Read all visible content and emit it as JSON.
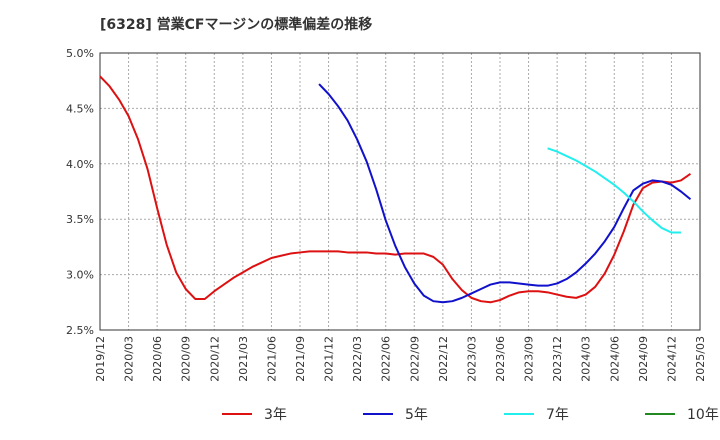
{
  "chart_data": {
    "type": "line",
    "title": "[6328]  営業CFマージンの標準偏差の推移",
    "xlabel": "",
    "ylabel": "",
    "x_ticks": [
      "2019/12",
      "2020/03",
      "2020/06",
      "2020/09",
      "2020/12",
      "2021/03",
      "2021/06",
      "2021/09",
      "2021/12",
      "2022/03",
      "2022/06",
      "2022/09",
      "2022/12",
      "2023/03",
      "2023/06",
      "2023/09",
      "2023/12",
      "2024/03",
      "2024/06",
      "2024/09",
      "2024/12",
      "2025/03"
    ],
    "y_ticks": [
      "2.5%",
      "3.0%",
      "3.5%",
      "4.0%",
      "4.5%",
      "5.0%"
    ],
    "ylim": [
      2.5,
      5.0
    ],
    "grid": true,
    "legend_position": "bottom",
    "series": [
      {
        "name": "3年",
        "color": "#dd1111",
        "start": "2019/12",
        "values": [
          4.79,
          4.7,
          4.58,
          4.43,
          4.22,
          3.95,
          3.6,
          3.27,
          3.02,
          2.87,
          2.78,
          2.78,
          2.85,
          2.91,
          2.97,
          3.02,
          3.07,
          3.11,
          3.15,
          3.17,
          3.19,
          3.2,
          3.21,
          3.21,
          3.21,
          3.21,
          3.2,
          3.2,
          3.2,
          3.19,
          3.19,
          3.18,
          3.19,
          3.19,
          3.19,
          3.16,
          3.09,
          2.96,
          2.86,
          2.79,
          2.76,
          2.75,
          2.77,
          2.81,
          2.84,
          2.85,
          2.85,
          2.84,
          2.82,
          2.8,
          2.79,
          2.82,
          2.89,
          3.01,
          3.18,
          3.39,
          3.63,
          3.78,
          3.83,
          3.84,
          3.83,
          3.85,
          3.91
        ]
      },
      {
        "name": "5年",
        "color": "#1111cc",
        "start": "2021/11",
        "values": [
          4.72,
          4.63,
          4.52,
          4.39,
          4.22,
          4.02,
          3.77,
          3.49,
          3.26,
          3.07,
          2.92,
          2.81,
          2.76,
          2.75,
          2.76,
          2.79,
          2.83,
          2.87,
          2.91,
          2.93,
          2.93,
          2.92,
          2.91,
          2.9,
          2.9,
          2.92,
          2.96,
          3.02,
          3.1,
          3.19,
          3.3,
          3.43,
          3.6,
          3.76,
          3.82,
          3.85,
          3.84,
          3.81,
          3.75,
          3.68
        ]
      },
      {
        "name": "7年",
        "color": "#22eeee",
        "start": "2023/11",
        "values": [
          4.14,
          4.11,
          4.07,
          4.03,
          3.98,
          3.93,
          3.87,
          3.81,
          3.74,
          3.66,
          3.57,
          3.49,
          3.42,
          3.38,
          3.38
        ]
      },
      {
        "name": "10年",
        "color": "#228822",
        "start": "2024/12",
        "values": []
      }
    ]
  }
}
